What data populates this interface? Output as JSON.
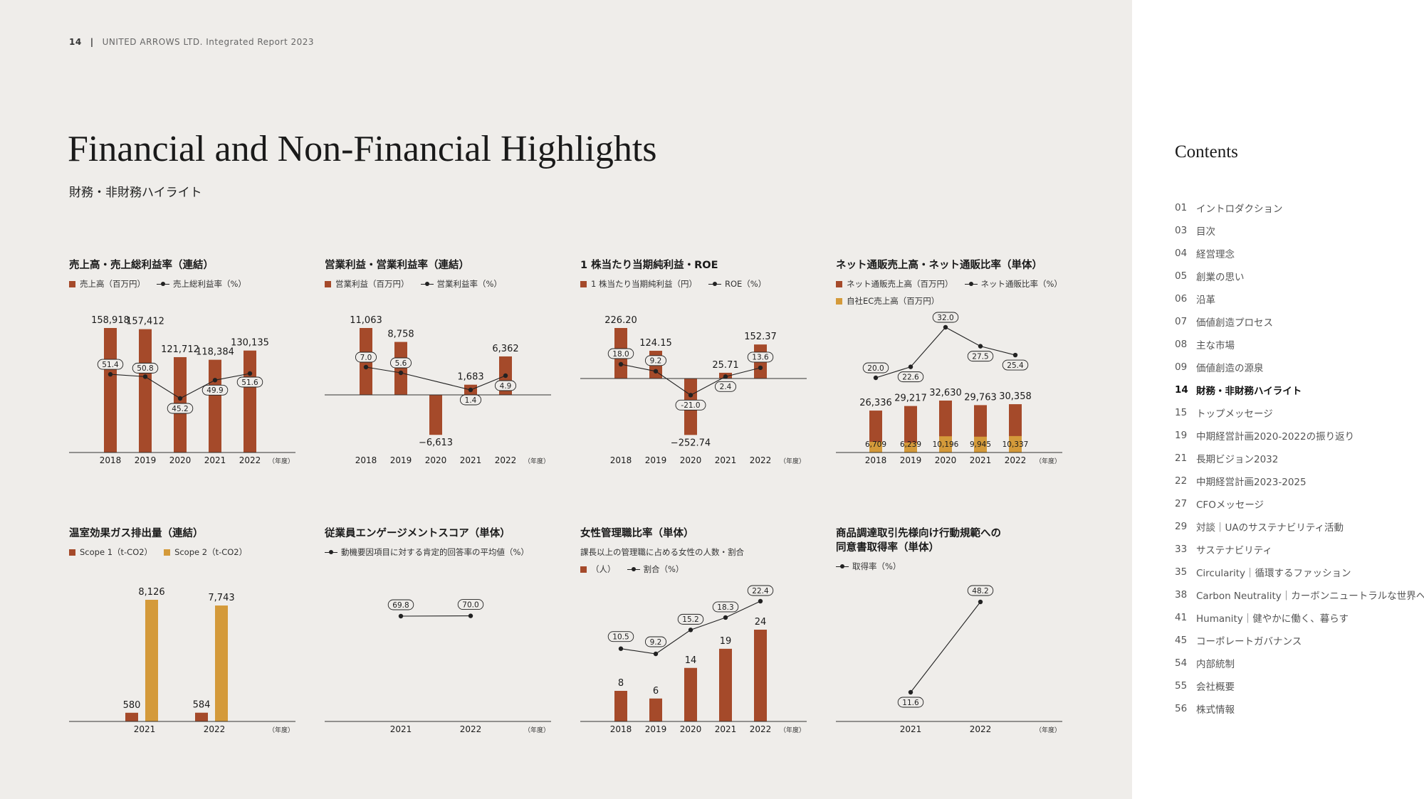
{
  "header": {
    "page": "14",
    "separator": "|",
    "report": "UNITED ARROWS LTD. Integrated Report 2023"
  },
  "title": "Financial and Non-Financial Highlights",
  "subtitle": "財務・非財務ハイライト",
  "colors": {
    "bar": "#a54a2a",
    "bar_gold": "#d49a3a",
    "line": "#222222",
    "background": "#efedea",
    "sidebar": "#ffffff"
  },
  "panels": [
    {
      "title": "売上高・売上総利益率（連結）",
      "legend": [
        {
          "kind": "bar",
          "label": "売上高（百万円）"
        },
        {
          "kind": "line",
          "label": "売上総利益率（%）"
        }
      ]
    },
    {
      "title": "営業利益・営業利益率（連結）",
      "legend": [
        {
          "kind": "bar",
          "label": "営業利益（百万円）"
        },
        {
          "kind": "line",
          "label": "営業利益率（%）"
        }
      ]
    },
    {
      "title": "1 株当たり当期純利益・ROE",
      "legend": [
        {
          "kind": "bar",
          "label": "1 株当たり当期純利益（円）"
        },
        {
          "kind": "line",
          "label": "ROE（%）"
        }
      ]
    },
    {
      "title": "ネット通販売上高・ネット通販比率（単体）",
      "legend": [
        {
          "kind": "bar",
          "label": "ネット通販売上高（百万円）"
        },
        {
          "kind": "line",
          "label": "ネット通販比率（%）"
        }
      ],
      "legend2": [
        {
          "kind": "bar_gold",
          "label": "自社EC売上高（百万円）"
        }
      ]
    },
    {
      "title": "温室効果ガス排出量（連結）",
      "legend": [
        {
          "kind": "bar",
          "label": "Scope 1（t-CO2）"
        },
        {
          "kind": "bar_gold",
          "label": "Scope 2（t-CO2）"
        }
      ]
    },
    {
      "title": "従業員エンゲージメントスコア（単体）",
      "legend": [
        {
          "kind": "line",
          "label": "動機要因項目に対する肯定的回答率の平均値（%）"
        }
      ]
    },
    {
      "title": "女性管理職比率（単体）",
      "note": "課長以上の管理職に占める女性の人数・割合",
      "legend": [
        {
          "kind": "bar",
          "label": "（人）"
        },
        {
          "kind": "line",
          "label": "割合（%）"
        }
      ]
    },
    {
      "title": "商品調達取引先様向け行動規範への",
      "title2": "同意書取得率（単体）",
      "legend": [
        {
          "kind": "line",
          "label": "取得率（%）"
        }
      ]
    }
  ],
  "chart_data": [
    {
      "type": "bar",
      "title": "売上高・売上総利益率（連結）",
      "categories": [
        "2018",
        "2019",
        "2020",
        "2021",
        "2022"
      ],
      "unit_label": "（年度）",
      "bar_series": [
        {
          "name": "売上高（百万円）",
          "values": [
            158918,
            157412,
            121712,
            118384,
            130135
          ],
          "labels": [
            "158,918",
            "157,412",
            "121,712",
            "118,384",
            "130,135"
          ]
        }
      ],
      "line_series": [
        {
          "name": "売上総利益率（%）",
          "values": [
            51.4,
            50.8,
            45.2,
            49.9,
            51.6
          ],
          "labels": [
            "51.4",
            "50.8",
            "45.2",
            "49.9",
            "51.6"
          ]
        }
      ]
    },
    {
      "type": "bar",
      "title": "営業利益・営業利益率（連結）",
      "categories": [
        "2018",
        "2019",
        "2020",
        "2021",
        "2022"
      ],
      "unit_label": "（年度）",
      "bar_series": [
        {
          "name": "営業利益（百万円）",
          "values": [
            11063,
            8758,
            -6613,
            1683,
            6362
          ],
          "labels": [
            "11,063",
            "8,758",
            "−6,613",
            "1,683",
            "6,362"
          ]
        }
      ],
      "line_series": [
        {
          "name": "営業利益率（%）",
          "values": [
            7.0,
            5.6,
            null,
            1.4,
            4.9
          ],
          "labels": [
            "7.0",
            "5.6",
            "",
            "1.4",
            "4.9"
          ]
        }
      ]
    },
    {
      "type": "bar",
      "title": "1 株当たり当期純利益・ROE",
      "categories": [
        "2018",
        "2019",
        "2020",
        "2021",
        "2022"
      ],
      "unit_label": "（年度）",
      "bar_series": [
        {
          "name": "1 株当たり当期純利益（円）",
          "values": [
            226.2,
            124.15,
            -252.74,
            25.71,
            152.37
          ],
          "labels": [
            "226.20",
            "124.15",
            "−252.74",
            "25.71",
            "152.37"
          ]
        }
      ],
      "line_series": [
        {
          "name": "ROE（%）",
          "values": [
            18.0,
            9.2,
            -21.0,
            2.4,
            13.6
          ],
          "labels": [
            "18.0",
            "9.2",
            "-21.0",
            "2.4",
            "13.6"
          ]
        }
      ]
    },
    {
      "type": "bar",
      "title": "ネット通販売上高・ネット通販比率（単体）",
      "categories": [
        "2018",
        "2019",
        "2020",
        "2021",
        "2022"
      ],
      "unit_label": "（年度）",
      "bar_series": [
        {
          "name": "ネット通販売上高（百万円）",
          "values": [
            26336,
            29217,
            32630,
            29763,
            30358
          ],
          "labels": [
            "26,336",
            "29,217",
            "32,630",
            "29,763",
            "30,358"
          ]
        },
        {
          "name": "自社EC売上高（百万円）",
          "values": [
            6709,
            6239,
            10196,
            9945,
            10337
          ],
          "labels": [
            "6,709",
            "6,239",
            "10,196",
            "9,945",
            "10,337"
          ]
        }
      ],
      "line_series": [
        {
          "name": "ネット通販比率（%）",
          "values": [
            20.0,
            22.6,
            32.0,
            27.5,
            25.4
          ],
          "labels": [
            "20.0",
            "22.6",
            "32.0",
            "27.5",
            "25.4"
          ]
        }
      ]
    },
    {
      "type": "bar",
      "title": "温室効果ガス排出量（連結）",
      "categories": [
        "2021",
        "2022"
      ],
      "unit_label": "（年度）",
      "bar_series": [
        {
          "name": "Scope 1（t-CO2）",
          "values": [
            580,
            584
          ],
          "labels": [
            "580",
            "584"
          ]
        },
        {
          "name": "Scope 2（t-CO2）",
          "values": [
            8126,
            7743
          ],
          "labels": [
            "8,126",
            "7,743"
          ]
        }
      ]
    },
    {
      "type": "line",
      "title": "従業員エンゲージメントスコア（単体）",
      "categories": [
        "2021",
        "2022"
      ],
      "unit_label": "（年度）",
      "line_series": [
        {
          "name": "動機要因項目に対する肯定的回答率の平均値（%）",
          "values": [
            69.8,
            70.0
          ],
          "labels": [
            "69.8",
            "70.0"
          ]
        }
      ]
    },
    {
      "type": "bar",
      "title": "女性管理職比率（単体）",
      "categories": [
        "2018",
        "2019",
        "2020",
        "2021",
        "2022"
      ],
      "unit_label": "（年度）",
      "bar_series": [
        {
          "name": "（人）",
          "values": [
            8,
            6,
            14,
            19,
            24
          ],
          "labels": [
            "8",
            "6",
            "14",
            "19",
            "24"
          ]
        }
      ],
      "line_series": [
        {
          "name": "割合（%）",
          "values": [
            10.5,
            9.2,
            15.2,
            18.3,
            22.4
          ],
          "labels": [
            "10.5",
            "9.2",
            "15.2",
            "18.3",
            "22.4"
          ]
        }
      ]
    },
    {
      "type": "line",
      "title": "商品調達取引先様向け行動規範への同意書取得率（単体）",
      "categories": [
        "2021",
        "2022"
      ],
      "unit_label": "（年度）",
      "line_series": [
        {
          "name": "取得率（%）",
          "values": [
            11.6,
            48.2
          ],
          "labels": [
            "11.6",
            "48.2"
          ]
        }
      ]
    }
  ],
  "sidebar": {
    "title": "Contents",
    "items": [
      {
        "num": "01",
        "label": "イントロダクション"
      },
      {
        "num": "03",
        "label": "目次"
      },
      {
        "num": "04",
        "label": "経営理念"
      },
      {
        "num": "05",
        "label": "創業の思い"
      },
      {
        "num": "06",
        "label": "沿革"
      },
      {
        "num": "07",
        "label": "価値創造プロセス"
      },
      {
        "num": "08",
        "label": "主な市場"
      },
      {
        "num": "09",
        "label": "価値創造の源泉"
      },
      {
        "num": "14",
        "label": "財務・非財務ハイライト",
        "active": true
      },
      {
        "num": "15",
        "label": "トップメッセージ"
      },
      {
        "num": "19",
        "label": "中期経営計画2020-2022の振り返り"
      },
      {
        "num": "21",
        "label": "長期ビジョン2032"
      },
      {
        "num": "22",
        "label": "中期経営計画2023-2025"
      },
      {
        "num": "27",
        "label": "CFOメッセージ"
      },
      {
        "num": "29",
        "label": "対談｜UAのサステナビリティ活動"
      },
      {
        "num": "33",
        "label": "サステナビリティ"
      },
      {
        "num": "35",
        "label": "Circularity｜循環するファッション"
      },
      {
        "num": "38",
        "label": "Carbon Neutrality｜カーボンニュートラルな世界へ"
      },
      {
        "num": "41",
        "label": "Humanity｜健やかに働く、暮らす"
      },
      {
        "num": "45",
        "label": "コーポレートガバナンス"
      },
      {
        "num": "54",
        "label": "内部統制"
      },
      {
        "num": "55",
        "label": "会社概要"
      },
      {
        "num": "56",
        "label": "株式情報"
      }
    ]
  }
}
